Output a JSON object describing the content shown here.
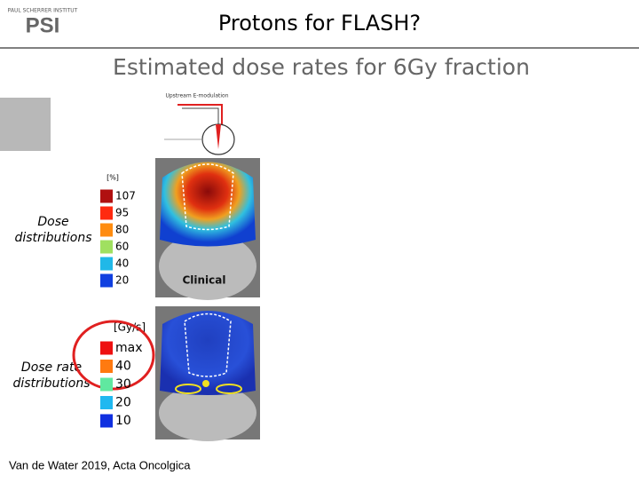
{
  "header": {
    "institute": "PAUL SCHERRER INSTITUT",
    "logo": "PSI",
    "title": "Protons for FLASH?"
  },
  "subtitle": "Estimated dose rates for 6Gy fraction",
  "diagram": {
    "label": "Upstream E-modulation"
  },
  "dose": {
    "label": "Dose distributions",
    "unit": "[%]",
    "image_label": "Clinical",
    "legend": [
      {
        "text": "107",
        "color": "#b01010"
      },
      {
        "text": "95",
        "color": "#ff2a10"
      },
      {
        "text": "80",
        "color": "#ff8c10"
      },
      {
        "text": "60",
        "color": "#a0e060"
      },
      {
        "text": "40",
        "color": "#20b8e8"
      },
      {
        "text": "20",
        "color": "#1040e0"
      }
    ]
  },
  "dose_rate": {
    "label": "Dose rate distributions",
    "unit": "[Gy/s]",
    "legend": [
      {
        "text": "max",
        "color": "#ee1010"
      },
      {
        "text": "40",
        "color": "#ff7a10"
      },
      {
        "text": "30",
        "color": "#60e8a0"
      },
      {
        "text": "20",
        "color": "#20b8f0"
      },
      {
        "text": "10",
        "color": "#1030e0"
      }
    ]
  },
  "citation": "Van de Water 2019, Acta Oncolgica"
}
